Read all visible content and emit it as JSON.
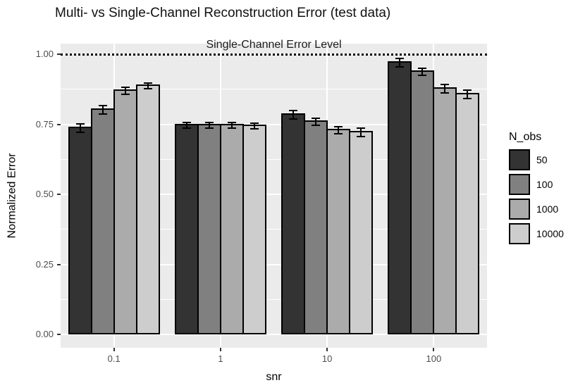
{
  "chart_data": {
    "type": "bar",
    "title": "Multi- vs Single-Channel Reconstruction Error (test data)",
    "xlabel": "snr",
    "ylabel": "Normalized Error",
    "categories": [
      "0.1",
      "1",
      "10",
      "100"
    ],
    "legend_title": "N_obs",
    "legend_position": "right",
    "series": [
      {
        "name": "50",
        "color": "#333333",
        "values": [
          0.74,
          0.75,
          0.789,
          0.975
        ],
        "errors": [
          0.012,
          0.008,
          0.012,
          0.012
        ]
      },
      {
        "name": "100",
        "color": "#808080",
        "values": [
          0.806,
          0.75,
          0.764,
          0.942
        ],
        "errors": [
          0.013,
          0.008,
          0.009,
          0.009
        ]
      },
      {
        "name": "1000",
        "color": "#ABABAB",
        "values": [
          0.874,
          0.75,
          0.734,
          0.882
        ],
        "errors": [
          0.009,
          0.008,
          0.011,
          0.013
        ]
      },
      {
        "name": "10000",
        "color": "#CDCDCD",
        "values": [
          0.891,
          0.748,
          0.726,
          0.862
        ],
        "errors": [
          0.008,
          0.008,
          0.012,
          0.013
        ]
      }
    ],
    "reference_line": {
      "value": 1.0,
      "label": "Single-Channel Error Level",
      "style": "dotted",
      "color": "#000000"
    },
    "ylim": [
      -0.048,
      1.048
    ],
    "y_ticks": [
      {
        "value": 0.0,
        "label": "0.00"
      },
      {
        "value": 0.25,
        "label": "0.25"
      },
      {
        "value": 0.5,
        "label": "0.50"
      },
      {
        "value": 0.75,
        "label": "0.75"
      },
      {
        "value": 1.0,
        "label": "1.00"
      }
    ],
    "grid": {
      "on": true,
      "y_major": [
        0.0,
        0.25,
        0.5,
        0.75,
        1.0
      ],
      "y_minor": [
        0.125,
        0.375,
        0.625,
        0.875
      ]
    },
    "error_bars": true
  },
  "colors": {
    "panel_bg": "#EBEBEB",
    "grid": "#FFFFFF",
    "bar_border": "#000000",
    "axis_tick_text": "#4D4D4D",
    "tick_mark": "#333333"
  }
}
